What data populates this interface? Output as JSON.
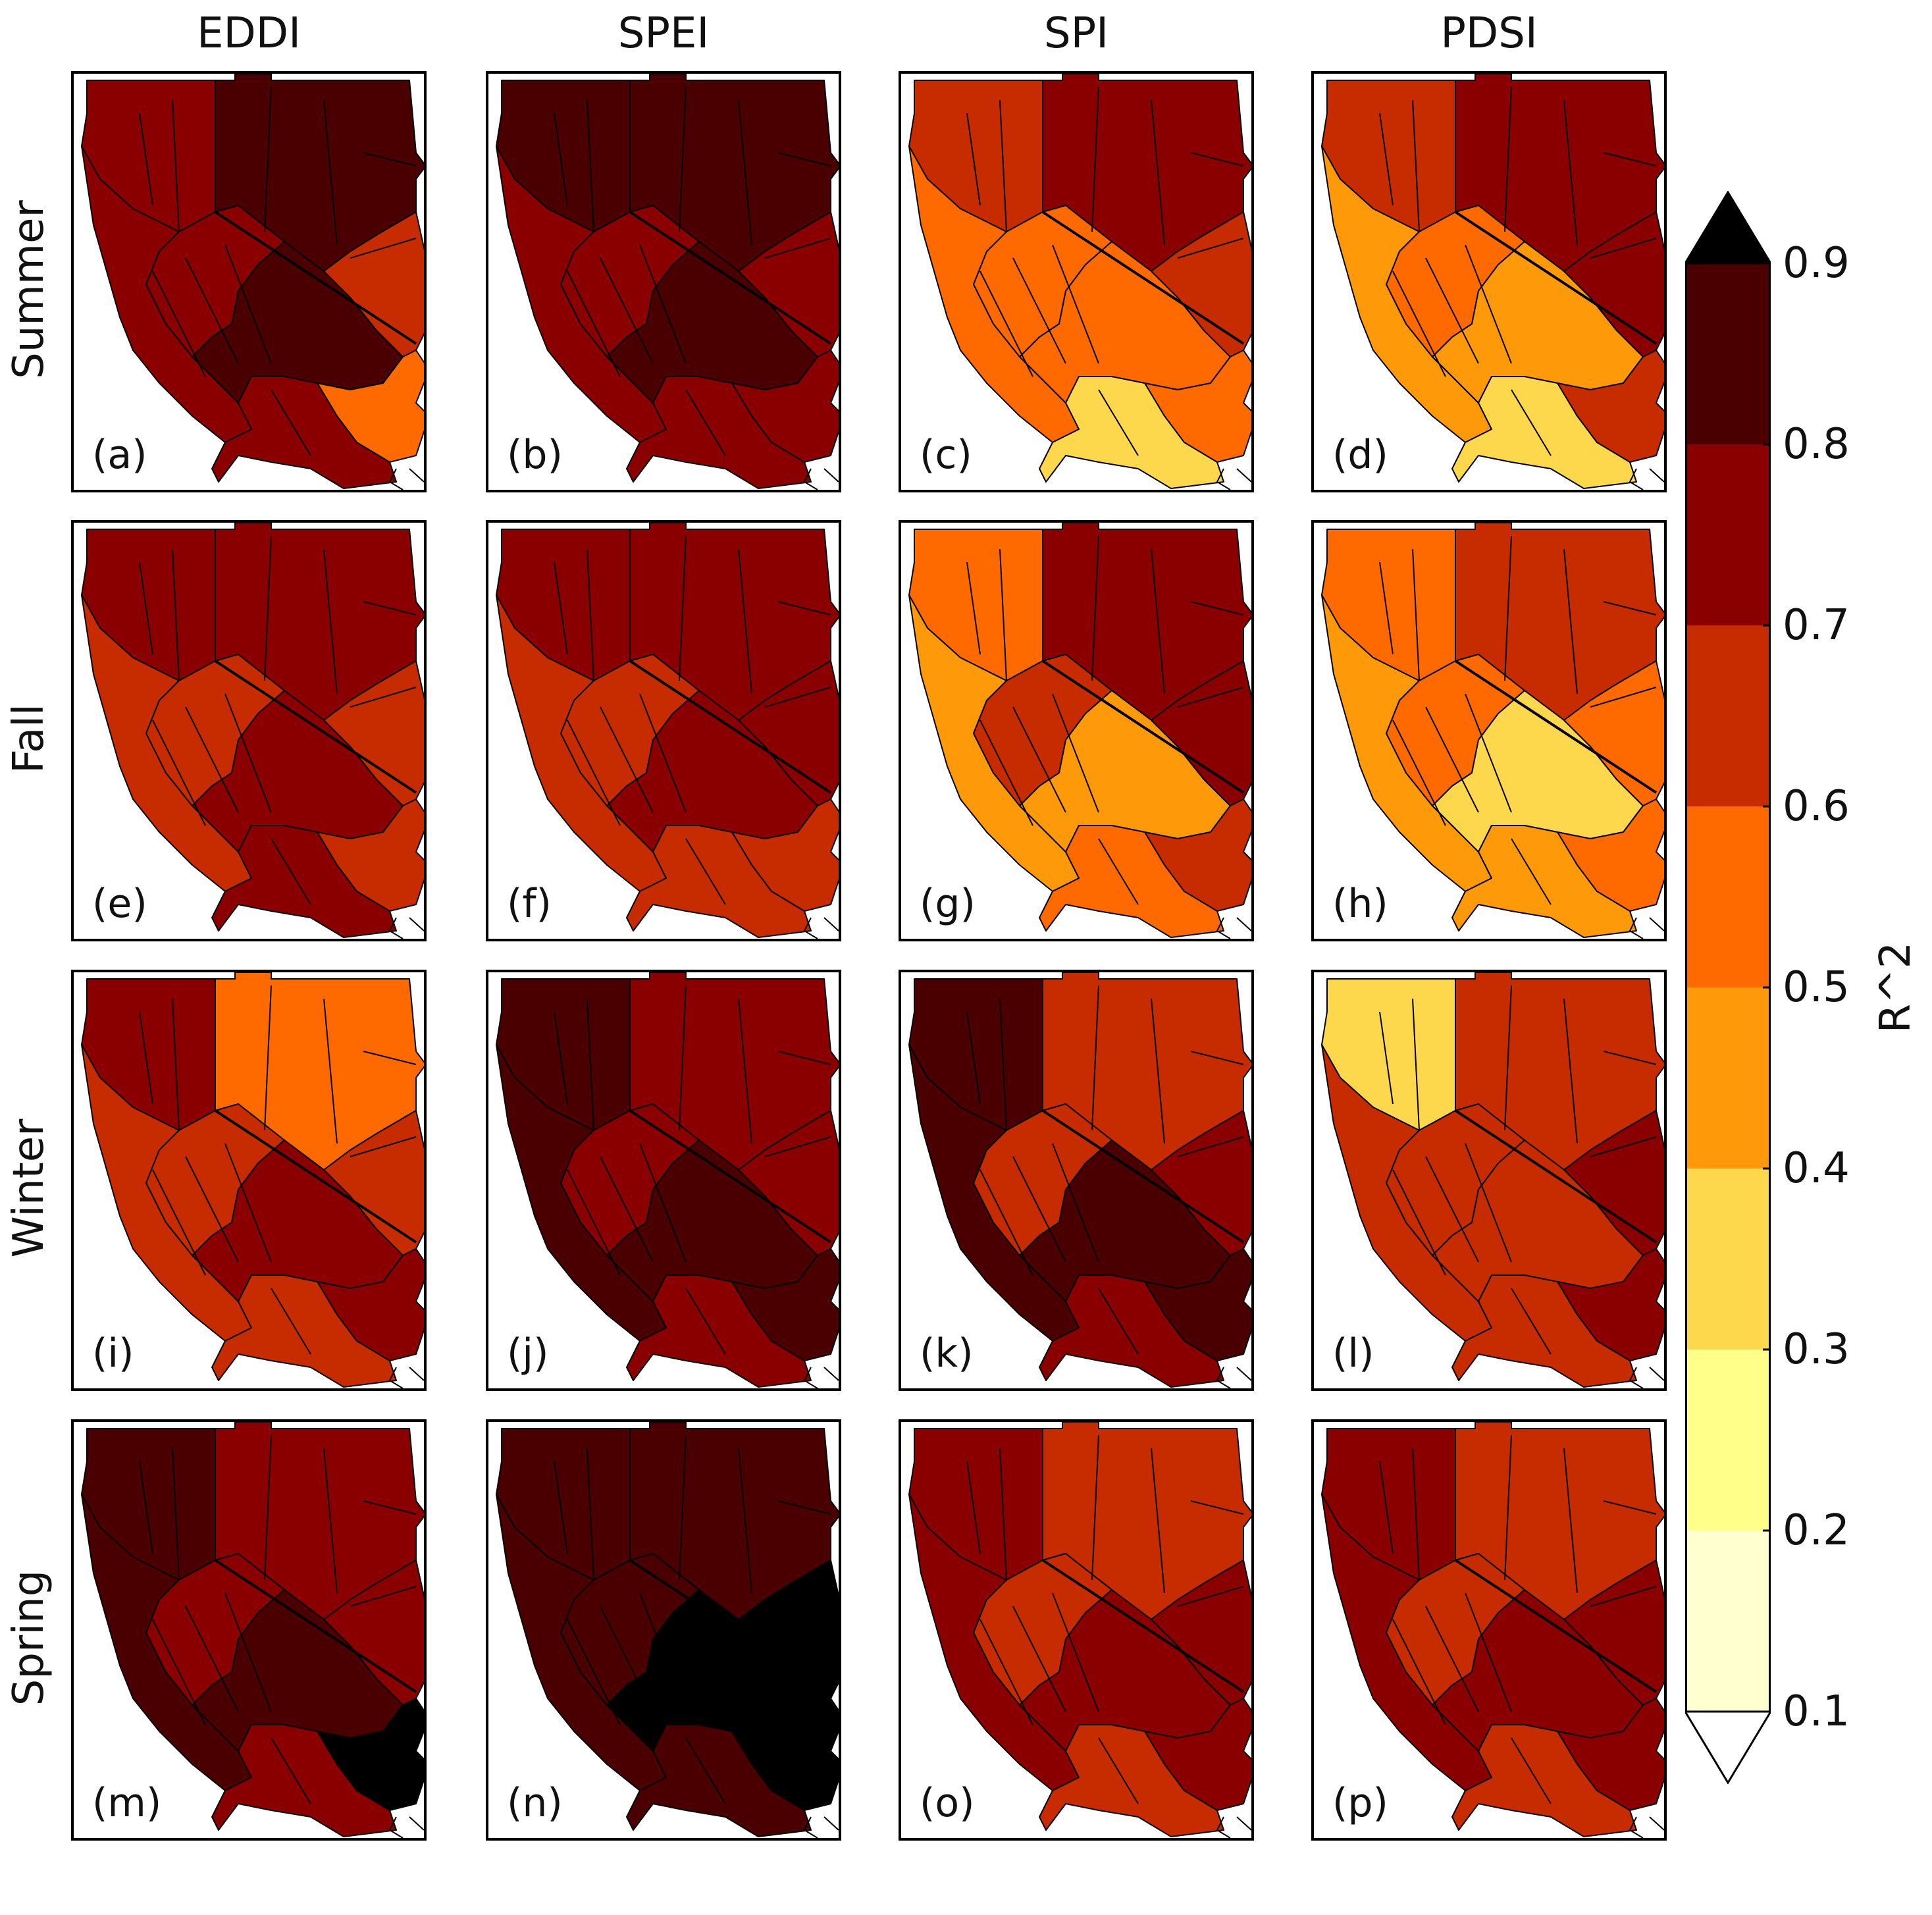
{
  "columns": [
    "EDDI",
    "SPEI",
    "SPI",
    "PDSI"
  ],
  "rows": [
    "Summer",
    "Fall",
    "Winter",
    "Spring"
  ],
  "colorbar": {
    "label": "R^2",
    "ticks": [
      "0.9",
      "0.8",
      "0.7",
      "0.6",
      "0.5",
      "0.4",
      "0.3",
      "0.2",
      "0.1"
    ],
    "bins": [
      {
        "range": "0.1-0.2",
        "color": "#ffffd0"
      },
      {
        "range": "0.2-0.3",
        "color": "#ffff8a"
      },
      {
        "range": "0.3-0.4",
        "color": "#fdd84c"
      },
      {
        "range": "0.4-0.5",
        "color": "#fe9a0a"
      },
      {
        "range": "0.5-0.6",
        "color": "#fe6a00"
      },
      {
        "range": "0.6-0.7",
        "color": "#c72b00"
      },
      {
        "range": "0.7-0.8",
        "color": "#8a0000"
      },
      {
        "range": "0.8-0.9",
        "color": "#4a0000"
      }
    ],
    "over_color": "#000000",
    "under_color": "#ffffff"
  },
  "panels": [
    {
      "label": "(a)",
      "index": "EDDI",
      "season": "Summer",
      "regions": {
        "nw": 0.75,
        "ne": 0.84,
        "coast": 0.72,
        "central": 0.78,
        "valley": 0.85,
        "east": 0.66,
        "se": 0.55,
        "south": 0.72
      }
    },
    {
      "label": "(b)",
      "index": "SPEI",
      "season": "Summer",
      "regions": {
        "nw": 0.82,
        "ne": 0.85,
        "coast": 0.74,
        "central": 0.75,
        "valley": 0.82,
        "east": 0.74,
        "se": 0.73,
        "south": 0.72
      }
    },
    {
      "label": "(c)",
      "index": "SPI",
      "season": "Summer",
      "regions": {
        "nw": 0.62,
        "ne": 0.72,
        "coast": 0.58,
        "central": 0.55,
        "valley": 0.56,
        "east": 0.65,
        "se": 0.52,
        "south": 0.38
      }
    },
    {
      "label": "(d)",
      "index": "PDSI",
      "season": "Summer",
      "regions": {
        "nw": 0.62,
        "ne": 0.74,
        "coast": 0.46,
        "central": 0.52,
        "valley": 0.48,
        "east": 0.72,
        "se": 0.62,
        "south": 0.36
      }
    },
    {
      "label": "(e)",
      "index": "EDDI",
      "season": "Fall",
      "regions": {
        "nw": 0.72,
        "ne": 0.74,
        "coast": 0.66,
        "central": 0.68,
        "valley": 0.72,
        "east": 0.66,
        "se": 0.62,
        "south": 0.72
      }
    },
    {
      "label": "(f)",
      "index": "SPEI",
      "season": "Fall",
      "regions": {
        "nw": 0.74,
        "ne": 0.76,
        "coast": 0.66,
        "central": 0.66,
        "valley": 0.74,
        "east": 0.7,
        "se": 0.66,
        "south": 0.66
      }
    },
    {
      "label": "(g)",
      "index": "SPI",
      "season": "Fall",
      "regions": {
        "nw": 0.56,
        "ne": 0.72,
        "coast": 0.46,
        "central": 0.62,
        "valley": 0.46,
        "east": 0.74,
        "se": 0.68,
        "south": 0.56
      }
    },
    {
      "label": "(h)",
      "index": "PDSI",
      "season": "Fall",
      "regions": {
        "nw": 0.52,
        "ne": 0.62,
        "coast": 0.46,
        "central": 0.56,
        "valley": 0.38,
        "east": 0.58,
        "se": 0.52,
        "south": 0.46
      }
    },
    {
      "label": "(i)",
      "index": "EDDI",
      "season": "Winter",
      "regions": {
        "nw": 0.72,
        "ne": 0.56,
        "coast": 0.66,
        "central": 0.66,
        "valley": 0.74,
        "east": 0.66,
        "se": 0.74,
        "south": 0.66
      }
    },
    {
      "label": "(j)",
      "index": "SPEI",
      "season": "Winter",
      "regions": {
        "nw": 0.82,
        "ne": 0.74,
        "coast": 0.82,
        "central": 0.74,
        "valley": 0.82,
        "east": 0.76,
        "se": 0.82,
        "south": 0.74
      }
    },
    {
      "label": "(k)",
      "index": "SPI",
      "season": "Winter",
      "regions": {
        "nw": 0.82,
        "ne": 0.64,
        "coast": 0.82,
        "central": 0.66,
        "valley": 0.83,
        "east": 0.74,
        "se": 0.82,
        "south": 0.72
      }
    },
    {
      "label": "(l)",
      "index": "PDSI",
      "season": "Winter",
      "regions": {
        "nw": 0.34,
        "ne": 0.66,
        "coast": 0.66,
        "central": 0.62,
        "valley": 0.68,
        "east": 0.72,
        "se": 0.74,
        "south": 0.62
      }
    },
    {
      "label": "(m)",
      "index": "EDDI",
      "season": "Spring",
      "regions": {
        "nw": 0.82,
        "ne": 0.72,
        "coast": 0.82,
        "central": 0.78,
        "valley": 0.83,
        "east": 0.74,
        "se": 0.95,
        "south": 0.78
      }
    },
    {
      "label": "(n)",
      "index": "SPEI",
      "season": "Spring",
      "regions": {
        "nw": 0.84,
        "ne": 0.8,
        "coast": 0.82,
        "central": 0.84,
        "valley": 0.95,
        "east": 0.95,
        "se": 0.95,
        "south": 0.82
      }
    },
    {
      "label": "(o)",
      "index": "SPI",
      "season": "Spring",
      "regions": {
        "nw": 0.78,
        "ne": 0.62,
        "coast": 0.76,
        "central": 0.66,
        "valley": 0.75,
        "east": 0.74,
        "se": 0.74,
        "south": 0.62
      }
    },
    {
      "label": "(p)",
      "index": "PDSI",
      "season": "Spring",
      "regions": {
        "nw": 0.72,
        "ne": 0.64,
        "coast": 0.76,
        "central": 0.68,
        "valley": 0.72,
        "east": 0.7,
        "se": 0.7,
        "south": 0.62
      }
    }
  ]
}
